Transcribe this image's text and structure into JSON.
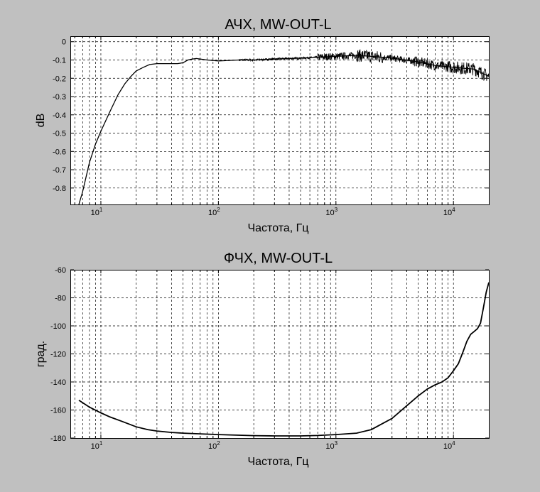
{
  "chart_data": [
    {
      "type": "line",
      "title": "АЧХ, MW-OUT-L",
      "xlabel": "Частота, Гц",
      "ylabel": "dB",
      "xscale": "log",
      "xlim": [
        5.5,
        20000
      ],
      "ylim": [
        -0.89,
        0.03
      ],
      "x_ticks": [
        10,
        100,
        1000,
        10000
      ],
      "x_tick_labels": [
        {
          "base": "10",
          "exp": "1"
        },
        {
          "base": "10",
          "exp": "2"
        },
        {
          "base": "10",
          "exp": "3"
        },
        {
          "base": "10",
          "exp": "4"
        }
      ],
      "y_ticks": [
        0,
        -0.1,
        -0.2,
        -0.3,
        -0.4,
        -0.5,
        -0.6,
        -0.7,
        -0.8
      ],
      "y_tick_labels": [
        "0",
        "-0.1",
        "-0.2",
        "-0.3",
        "-0.4",
        "-0.5",
        "-0.6",
        "-0.7",
        "-0.8"
      ],
      "grid": true,
      "line_color": "#000000",
      "series": [
        {
          "x": [
            6.5,
            7,
            8,
            9,
            10,
            12,
            14,
            16,
            18,
            20,
            23,
            26,
            30,
            35,
            40,
            45,
            50,
            55,
            60,
            65,
            70,
            80,
            100,
            150,
            200,
            300,
            500,
            700,
            1000,
            1500,
            2000,
            3000,
            5000,
            7000,
            10000,
            15000,
            20000
          ],
          "y": [
            -0.89,
            -0.82,
            -0.66,
            -0.56,
            -0.49,
            -0.38,
            -0.29,
            -0.23,
            -0.19,
            -0.16,
            -0.14,
            -0.125,
            -0.12,
            -0.12,
            -0.12,
            -0.12,
            -0.115,
            -0.1,
            -0.095,
            -0.092,
            -0.095,
            -0.1,
            -0.105,
            -0.1,
            -0.1,
            -0.095,
            -0.09,
            -0.085,
            -0.08,
            -0.075,
            -0.08,
            -0.09,
            -0.11,
            -0.13,
            -0.14,
            -0.15,
            -0.19
          ]
        }
      ]
    },
    {
      "type": "line",
      "title": "ФЧХ, MW-OUT-L",
      "xlabel": "Частота, Гц",
      "ylabel": "град.",
      "xscale": "log",
      "xlim": [
        5.5,
        20000
      ],
      "ylim": [
        -180,
        -60
      ],
      "x_ticks": [
        10,
        100,
        1000,
        10000
      ],
      "x_tick_labels": [
        {
          "base": "10",
          "exp": "1"
        },
        {
          "base": "10",
          "exp": "2"
        },
        {
          "base": "10",
          "exp": "3"
        },
        {
          "base": "10",
          "exp": "4"
        }
      ],
      "y_ticks": [
        -60,
        -80,
        -100,
        -120,
        -140,
        -160,
        -180
      ],
      "y_tick_labels": [
        "-60",
        "-80",
        "-100",
        "-120",
        "-140",
        "-160",
        "-180"
      ],
      "grid": true,
      "line_color": "#000000",
      "series": [
        {
          "x": [
            6.5,
            8,
            10,
            12,
            15,
            20,
            25,
            30,
            40,
            50,
            70,
            100,
            150,
            200,
            300,
            400,
            500,
            700,
            1000,
            1500,
            2000,
            3000,
            4000,
            5000,
            6000,
            7000,
            8000,
            9000,
            10000,
            11000,
            12000,
            13000,
            14000,
            15000,
            16000,
            17000,
            18000,
            19000,
            20000
          ],
          "y": [
            -153,
            -158,
            -162,
            -165,
            -168,
            -172,
            -174,
            -175,
            -176,
            -176.5,
            -177,
            -177.5,
            -178,
            -178.3,
            -178.5,
            -178.5,
            -178.5,
            -178.2,
            -177.5,
            -176.5,
            -174,
            -166,
            -157,
            -150,
            -145,
            -142,
            -140,
            -137,
            -132,
            -127,
            -119,
            -111,
            -106,
            -104,
            -102,
            -98,
            -87,
            -76,
            -69
          ]
        }
      ]
    }
  ]
}
